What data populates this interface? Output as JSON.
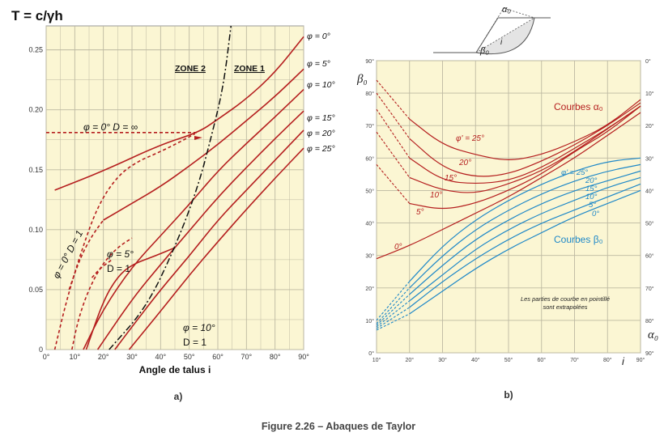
{
  "figure_caption": "Figure 2.26 – Abaques de Taylor",
  "colors": {
    "panel_bg": "#fbf6d3",
    "grid": "#bdb9a2",
    "red": "#b51f1f",
    "blue": "#1e88c8",
    "black": "#111111"
  },
  "chart_data": [
    {
      "id": "a",
      "type": "line",
      "panel_label": "a)",
      "title": "T = c/γh",
      "xlabel": "Angle de talus i",
      "xlim": [
        0,
        90
      ],
      "ylim": [
        0,
        0.27
      ],
      "xticks": [
        "0°",
        "10°",
        "20°",
        "30°",
        "40°",
        "50°",
        "60°",
        "70°",
        "80°",
        "90°"
      ],
      "yticks": [
        "0",
        "0.05",
        "0.10",
        "0.15",
        "0.20",
        "0.25"
      ],
      "zone_labels": [
        "ZONE 2",
        "ZONE 1"
      ],
      "annotations": [
        {
          "text": "φ = 0°   D = ∞"
        },
        {
          "text": "φ = 0°   D = 1"
        },
        {
          "text": "φ = 5°"
        },
        {
          "text": "D = 1"
        },
        {
          "text": "φ = 10°"
        },
        {
          "text": "D = 1"
        }
      ],
      "series": [
        {
          "name": "φ = 0°",
          "style": "solid",
          "points": [
            [
              3,
              0.133
            ],
            [
              20,
              0.149
            ],
            [
              40,
              0.171
            ],
            [
              53.1,
              0.181
            ],
            [
              60,
              0.192
            ],
            [
              70,
              0.209
            ],
            [
              80,
              0.231
            ],
            [
              90,
              0.261
            ]
          ]
        },
        {
          "name": "φ = 5°",
          "style": "solid",
          "points": [
            [
              20,
              0.108
            ],
            [
              30,
              0.122
            ],
            [
              40,
              0.136
            ],
            [
              50,
              0.153
            ],
            [
              60,
              0.171
            ],
            [
              70,
              0.191
            ],
            [
              80,
              0.211
            ],
            [
              90,
              0.234
            ]
          ]
        },
        {
          "name": "φ = 10°",
          "style": "solid",
          "points": [
            [
              13,
              0.0
            ],
            [
              20,
              0.034
            ],
            [
              30,
              0.069
            ],
            [
              40,
              0.095
            ],
            [
              50,
              0.121
            ],
            [
              60,
              0.149
            ],
            [
              70,
              0.172
            ],
            [
              80,
              0.194
            ],
            [
              90,
              0.217
            ]
          ]
        },
        {
          "name": "φ = 15°",
          "style": "solid",
          "points": [
            [
              18,
              0.0
            ],
            [
              30,
              0.042
            ],
            [
              40,
              0.071
            ],
            [
              50,
              0.099
            ],
            [
              60,
              0.127
            ],
            [
              70,
              0.152
            ],
            [
              80,
              0.176
            ],
            [
              90,
              0.199
            ]
          ]
        },
        {
          "name": "φ = 20°",
          "style": "solid",
          "points": [
            [
              24,
              0.0
            ],
            [
              30,
              0.019
            ],
            [
              40,
              0.05
            ],
            [
              50,
              0.078
            ],
            [
              60,
              0.108
            ],
            [
              70,
              0.133
            ],
            [
              80,
              0.158
            ],
            [
              90,
              0.183
            ]
          ]
        },
        {
          "name": "φ = 25°",
          "style": "solid",
          "points": [
            [
              29,
              0.0
            ],
            [
              40,
              0.032
            ],
            [
              50,
              0.062
            ],
            [
              60,
              0.09
            ],
            [
              70,
              0.117
            ],
            [
              80,
              0.143
            ],
            [
              90,
              0.168
            ]
          ]
        },
        {
          "name": "φ = 0° D = ∞ (horizontal)",
          "style": "dashed",
          "points": [
            [
              0,
              0.181
            ],
            [
              53,
              0.181
            ]
          ]
        },
        {
          "name": "φ = 0° D = 1",
          "style": "dashed",
          "points": [
            [
              3,
              0.0
            ],
            [
              7,
              0.04
            ],
            [
              12,
              0.08
            ],
            [
              18,
              0.12
            ],
            [
              25,
              0.145
            ],
            [
              32,
              0.157
            ],
            [
              38,
              0.163
            ],
            [
              45,
              0.171
            ],
            [
              52,
              0.18
            ]
          ]
        },
        {
          "name": "φ = 0° D = 1 lower",
          "style": "dashed",
          "points": [
            [
              8,
              0.05
            ],
            [
              12,
              0.077
            ],
            [
              16,
              0.095
            ],
            [
              20,
              0.108
            ]
          ]
        },
        {
          "name": "φ = 5° D = 1",
          "style": "dashed",
          "points": [
            [
              9,
              0.0
            ],
            [
              11,
              0.023
            ],
            [
              14,
              0.045
            ],
            [
              18,
              0.065
            ],
            [
              22,
              0.078
            ],
            [
              26,
              0.087
            ],
            [
              30,
              0.093
            ]
          ]
        },
        {
          "name": "φ = 5° D = 1 lower",
          "style": "dashed",
          "points": [
            [
              16,
              0.06
            ],
            [
              19,
              0.068
            ],
            [
              23,
              0.075
            ]
          ]
        },
        {
          "name": "φ = 10° D = 1",
          "style": "solid",
          "points": [
            [
              14,
              0.0
            ],
            [
              20,
              0.041
            ],
            [
              25,
              0.061
            ],
            [
              30,
              0.071
            ],
            [
              38,
              0.078
            ],
            [
              45,
              0.085
            ]
          ]
        },
        {
          "name": "zone boundary",
          "style": "dashdot",
          "points": [
            [
              22,
              0.0
            ],
            [
              35,
              0.035
            ],
            [
              45,
              0.085
            ],
            [
              53,
              0.135
            ],
            [
              58,
              0.18
            ],
            [
              62,
              0.22
            ],
            [
              64.6,
              0.27
            ]
          ]
        }
      ]
    },
    {
      "id": "b",
      "type": "line",
      "panel_label": "b)",
      "xlabel": "i",
      "ylabel": "β₀",
      "y2label": "α₀",
      "xlim": [
        10,
        90
      ],
      "ylim": [
        0,
        90
      ],
      "y2lim": [
        90,
        0
      ],
      "xticks": [
        "10°",
        "20°",
        "30°",
        "40°",
        "50°",
        "60°",
        "70°",
        "80°",
        "90°"
      ],
      "yticks": [
        "0°",
        "10°",
        "20°",
        "30°",
        "40°",
        "50°",
        "60°",
        "70°",
        "80°",
        "90°"
      ],
      "y2ticks": [
        "0°",
        "10°",
        "20°",
        "30°",
        "40°",
        "50°",
        "60°",
        "70°",
        "80°",
        "90°"
      ],
      "legend_labels": [
        "Courbes α₀",
        "Courbes β₀"
      ],
      "note": [
        "Les parties de courbe en pointillé",
        "sont extrapolées"
      ],
      "red_labels": [
        "φ' = 25°",
        "20°",
        "15°",
        "10°",
        "5°",
        "0°"
      ],
      "blue_labels": [
        "φ' = 25°",
        "20°",
        "15°",
        "10°",
        "5°",
        "0°"
      ],
      "alpha_series": [
        {
          "name": "φ' = 25°",
          "points": [
            [
              10,
              84
            ],
            [
              20,
              72
            ],
            [
              30,
              64
            ],
            [
              40,
              61
            ],
            [
              50,
              59
            ],
            [
              60,
              61
            ],
            [
              70,
              65
            ],
            [
              80,
              70
            ],
            [
              90,
              78
            ]
          ]
        },
        {
          "name": "20°",
          "points": [
            [
              10,
              80
            ],
            [
              20,
              66
            ],
            [
              30,
              57
            ],
            [
              40,
              54
            ],
            [
              50,
              55
            ],
            [
              60,
              59
            ],
            [
              70,
              64
            ],
            [
              80,
              70
            ],
            [
              90,
              77
            ]
          ]
        },
        {
          "name": "15°",
          "points": [
            [
              10,
              75
            ],
            [
              20,
              60
            ],
            [
              30,
              53
            ],
            [
              40,
              52
            ],
            [
              50,
              53
            ],
            [
              60,
              57
            ],
            [
              70,
              63
            ],
            [
              80,
              69
            ],
            [
              90,
              76
            ]
          ]
        },
        {
          "name": "10°",
          "points": [
            [
              10,
              68
            ],
            [
              20,
              54
            ],
            [
              30,
              50
            ],
            [
              40,
              49
            ],
            [
              50,
              52
            ],
            [
              60,
              56
            ],
            [
              70,
              62
            ],
            [
              80,
              69
            ],
            [
              90,
              76
            ]
          ]
        },
        {
          "name": "5°",
          "points": [
            [
              10,
              58
            ],
            [
              20,
              46
            ],
            [
              30,
              44
            ],
            [
              40,
              46
            ],
            [
              50,
              50
            ],
            [
              60,
              55
            ],
            [
              70,
              62
            ],
            [
              80,
              68
            ],
            [
              90,
              76
            ]
          ]
        },
        {
          "name": "0°",
          "points": [
            [
              10,
              29
            ],
            [
              20,
              33
            ],
            [
              30,
              38
            ],
            [
              40,
              43
            ],
            [
              50,
              48
            ],
            [
              60,
              54
            ],
            [
              70,
              60
            ],
            [
              80,
              67
            ],
            [
              90,
              74
            ]
          ]
        }
      ],
      "beta_series": [
        {
          "name": "φ' = 25°",
          "points": [
            [
              10,
              10
            ],
            [
              20,
              22
            ],
            [
              30,
              33
            ],
            [
              40,
              41
            ],
            [
              50,
              47
            ],
            [
              60,
              52
            ],
            [
              70,
              56
            ],
            [
              80,
              59
            ],
            [
              90,
              60
            ]
          ]
        },
        {
          "name": "20°",
          "points": [
            [
              10,
              9
            ],
            [
              20,
              20
            ],
            [
              30,
              30
            ],
            [
              40,
              38
            ],
            [
              50,
              44
            ],
            [
              60,
              49
            ],
            [
              70,
              53
            ],
            [
              80,
              56
            ],
            [
              90,
              58
            ]
          ]
        },
        {
          "name": "15°",
          "points": [
            [
              10,
              8.5
            ],
            [
              20,
              18
            ],
            [
              30,
              27
            ],
            [
              40,
              35
            ],
            [
              50,
              41
            ],
            [
              60,
              46
            ],
            [
              70,
              50
            ],
            [
              80,
              53
            ],
            [
              90,
              56
            ]
          ]
        },
        {
          "name": "10°",
          "points": [
            [
              10,
              8
            ],
            [
              20,
              16
            ],
            [
              30,
              24
            ],
            [
              40,
              32
            ],
            [
              50,
              38
            ],
            [
              60,
              43
            ],
            [
              70,
              47
            ],
            [
              80,
              51
            ],
            [
              90,
              54
            ]
          ]
        },
        {
          "name": "5°",
          "points": [
            [
              10,
              7.5
            ],
            [
              20,
              14
            ],
            [
              30,
              22
            ],
            [
              40,
              29
            ],
            [
              50,
              35
            ],
            [
              60,
              40
            ],
            [
              70,
              44
            ],
            [
              80,
              48
            ],
            [
              90,
              52
            ]
          ]
        },
        {
          "name": "0°",
          "points": [
            [
              10,
              7
            ],
            [
              20,
              12
            ],
            [
              30,
              19
            ],
            [
              40,
              26
            ],
            [
              50,
              32
            ],
            [
              60,
              37
            ],
            [
              70,
              42
            ],
            [
              80,
              46
            ],
            [
              90,
              50
            ]
          ]
        }
      ]
    }
  ],
  "sketch": {
    "labels": [
      "α₀",
      "i",
      "β₀"
    ]
  }
}
